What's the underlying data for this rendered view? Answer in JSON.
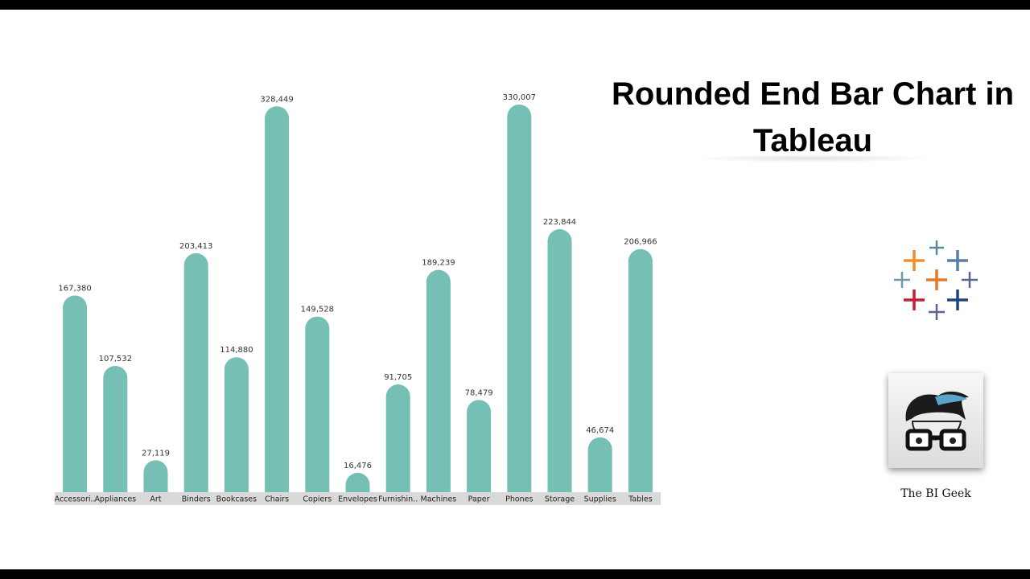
{
  "chart_data": {
    "type": "bar",
    "title": "Rounded End Bar Chart in Tableau",
    "categories": [
      "Accessori..",
      "Appliances",
      "Art",
      "Binders",
      "Bookcases",
      "Chairs",
      "Copiers",
      "Envelopes",
      "Furnishin..",
      "Machines",
      "Paper",
      "Phones",
      "Storage",
      "Supplies",
      "Tables"
    ],
    "values": [
      167380,
      107532,
      27119,
      203413,
      114880,
      328449,
      149528,
      16476,
      91705,
      189239,
      78479,
      330007,
      223844,
      46674,
      206966
    ],
    "value_labels": [
      "167,380",
      "107,532",
      "27,119",
      "203,413",
      "114,880",
      "328,449",
      "149,528",
      "16,476",
      "91,705",
      "189,239",
      "78,479",
      "330,007",
      "223,844",
      "46,674",
      "206,966"
    ],
    "color": "#76bfb5"
  },
  "brand": "The BI Geek"
}
